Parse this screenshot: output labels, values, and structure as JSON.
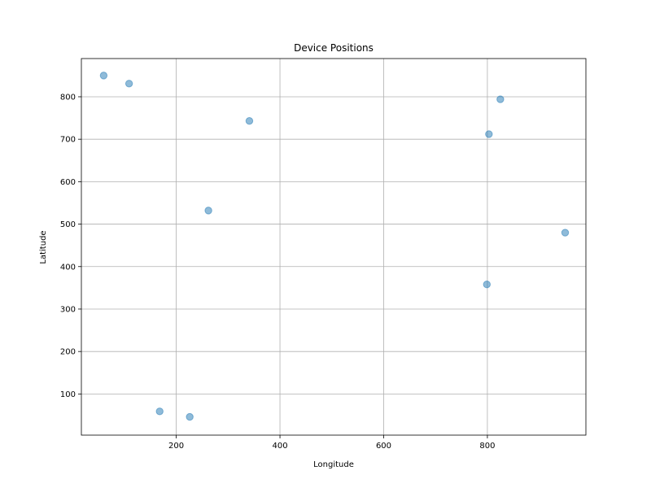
{
  "chart_data": {
    "type": "scatter",
    "title": "Device Positions",
    "xlabel": "Longitude",
    "ylabel": "Latitude",
    "xlim": [
      17,
      990
    ],
    "ylim": [
      3,
      890
    ],
    "xticks": [
      200,
      400,
      600,
      800
    ],
    "yticks": [
      100,
      200,
      300,
      400,
      500,
      600,
      700,
      800
    ],
    "grid": true,
    "legend": "none",
    "point_color": "#1f77b4",
    "point_alpha": 0.5,
    "points": [
      {
        "x": 60,
        "y": 850
      },
      {
        "x": 109,
        "y": 831
      },
      {
        "x": 341,
        "y": 743
      },
      {
        "x": 825,
        "y": 794
      },
      {
        "x": 803,
        "y": 712
      },
      {
        "x": 262,
        "y": 532
      },
      {
        "x": 950,
        "y": 480
      },
      {
        "x": 799,
        "y": 358
      },
      {
        "x": 168,
        "y": 59
      },
      {
        "x": 226,
        "y": 46
      }
    ]
  }
}
